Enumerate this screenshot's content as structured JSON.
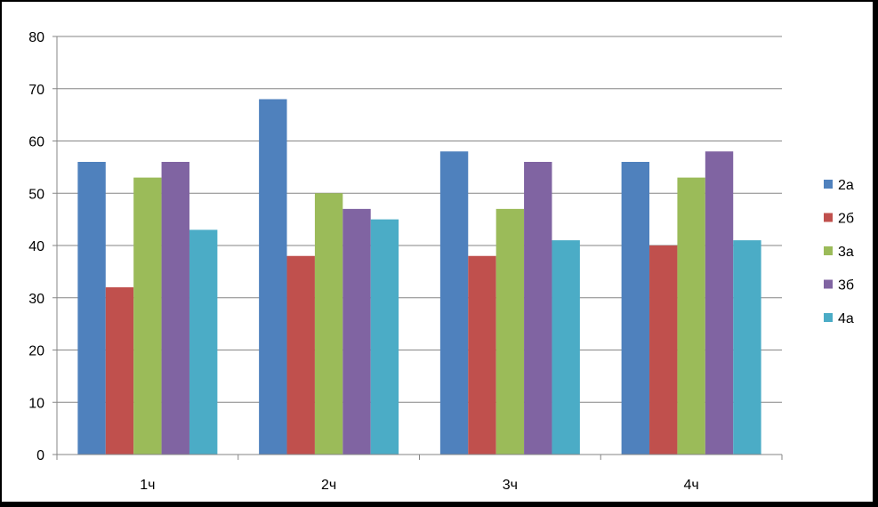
{
  "chart_data": {
    "type": "bar",
    "categories": [
      "1ч",
      "2ч",
      "3ч",
      "4ч"
    ],
    "series": [
      {
        "name": "2а",
        "values": [
          56,
          68,
          58,
          56
        ],
        "color": "#4F81BD"
      },
      {
        "name": "2б",
        "values": [
          32,
          38,
          38,
          40
        ],
        "color": "#C0504D"
      },
      {
        "name": "3а",
        "values": [
          53,
          50,
          47,
          53
        ],
        "color": "#9BBB59"
      },
      {
        "name": "3б",
        "values": [
          56,
          47,
          56,
          58
        ],
        "color": "#8064A2"
      },
      {
        "name": "4а",
        "values": [
          43,
          45,
          41,
          41
        ],
        "color": "#4BACC6"
      }
    ],
    "ylim": [
      0,
      80
    ],
    "yticks": [
      0,
      10,
      20,
      30,
      40,
      50,
      60,
      70,
      80
    ],
    "grid": true,
    "legend_position": "right"
  }
}
